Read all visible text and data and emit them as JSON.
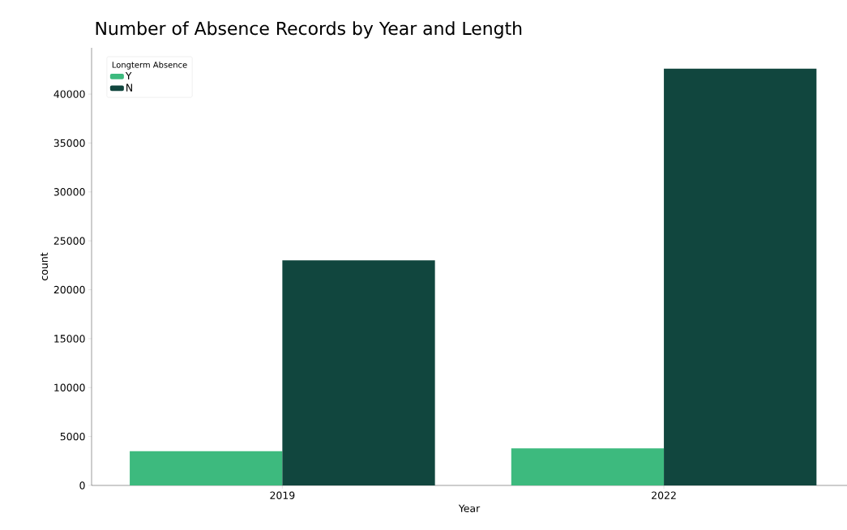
{
  "chart_data": {
    "type": "bar",
    "title": "Number of Absence Records by Year and Length",
    "xlabel": "Year",
    "ylabel": "count",
    "legend_title": "Longterm Absence",
    "categories": [
      "2019",
      "2022"
    ],
    "series": [
      {
        "name": "Y",
        "color": "#3dba7e",
        "values": [
          3500,
          3800
        ]
      },
      {
        "name": "N",
        "color": "#11463e",
        "values": [
          23000,
          42600
        ]
      }
    ],
    "ylim": [
      0,
      44730
    ],
    "yticks": [
      0,
      5000,
      10000,
      15000,
      20000,
      25000,
      30000,
      35000,
      40000
    ],
    "grid": false,
    "legend": "top left"
  }
}
